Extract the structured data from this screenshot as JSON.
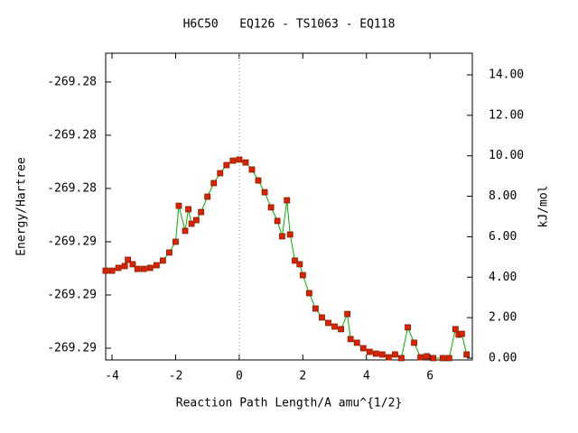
{
  "chart_data": {
    "type": "line",
    "title": "H6C50   EQ126 - TS1063 - EQ118",
    "xlabel": "Reaction Path Length/A amu^{1/2}",
    "ylabel": "Energy/Hartree",
    "y2label": "kJ/mol",
    "xlim": [
      -4.2,
      7.33
    ],
    "xticks": [
      -4,
      -2,
      0,
      2,
      4,
      6
    ],
    "ylim": [
      -269.28772,
      -269.28196
    ],
    "yticks": [
      {
        "value": -269.2825,
        "label": "-269.28"
      },
      {
        "value": -269.2835,
        "label": "-269.28"
      },
      {
        "value": -269.2845,
        "label": "-269.28"
      },
      {
        "value": -269.2855,
        "label": "-269.29"
      },
      {
        "value": -269.2865,
        "label": "-269.29"
      },
      {
        "value": -269.2875,
        "label": "-269.29"
      }
    ],
    "y2lim": [
      -0.09,
      15.07
    ],
    "y2ticks": [
      {
        "value": 0,
        "label": "0.00"
      },
      {
        "value": 2,
        "label": "2.00"
      },
      {
        "value": 4,
        "label": "4.00"
      },
      {
        "value": 6,
        "label": "6.00"
      },
      {
        "value": 8,
        "label": "8.00"
      },
      {
        "value": 10,
        "label": "10.00"
      },
      {
        "value": 12,
        "label": "12.00"
      },
      {
        "value": 14,
        "label": "14.00"
      }
    ],
    "xline": 0,
    "line_color": "#00b000",
    "marker_color": "#e02000",
    "series": [
      {
        "axis": "y2",
        "x": [
          -4.2,
          -4.0,
          -3.8,
          -3.6,
          -3.5,
          -3.35,
          -3.2,
          -3.0,
          -2.8,
          -2.6,
          -2.4,
          -2.2,
          -2.0,
          -1.9,
          -1.7,
          -1.6,
          -1.5,
          -1.35,
          -1.2,
          -1.0,
          -0.8,
          -0.6,
          -0.4,
          -0.2,
          0,
          0.2,
          0.4,
          0.6,
          0.8,
          1.0,
          1.2,
          1.35,
          1.5,
          1.6,
          1.75,
          1.9,
          2.0,
          2.2,
          2.4,
          2.6,
          2.8,
          3.0,
          3.2,
          3.4,
          3.5,
          3.7,
          3.9,
          4.1,
          4.3,
          4.5,
          4.7,
          4.9,
          5.1,
          5.3,
          5.5,
          5.7,
          5.9,
          6.1,
          6.4,
          6.6,
          6.8,
          6.9,
          7.0,
          7.15
        ],
        "values": [
          4.32,
          4.32,
          4.46,
          4.55,
          4.86,
          4.64,
          4.41,
          4.41,
          4.46,
          4.59,
          4.82,
          5.22,
          5.75,
          7.53,
          6.29,
          7.36,
          6.64,
          6.82,
          7.22,
          7.98,
          8.65,
          9.14,
          9.54,
          9.76,
          9.81,
          9.67,
          9.32,
          8.78,
          8.2,
          7.45,
          6.78,
          6.02,
          7.8,
          6.11,
          4.82,
          4.64,
          4.1,
          3.21,
          2.45,
          2.01,
          1.74,
          1.56,
          1.43,
          2.18,
          0.94,
          0.76,
          0.49,
          0.31,
          0.22,
          0.18,
          0.04,
          0.18,
          0,
          1.52,
          0.76,
          0.04,
          0.09,
          0,
          0,
          0,
          1.43,
          1.16,
          1.2,
          0.18
        ]
      }
    ]
  }
}
